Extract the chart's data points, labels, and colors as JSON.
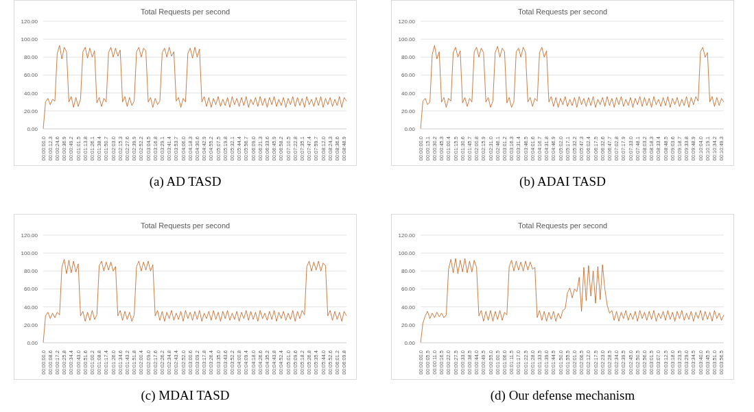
{
  "chart_data": [
    {
      "type": "line",
      "title": "Total Requests per second",
      "annotations": [
        "(a) AD TASD"
      ],
      "color": "#c55a11",
      "grid": "y",
      "marker": "none",
      "categories": [
        "00:00:00.0",
        null,
        null,
        "00:00:12.3",
        null,
        null,
        "00:00:24.6",
        null,
        null,
        "00:00:36.9",
        null,
        null,
        "00:00:49.2",
        null,
        null,
        "00:01:01.5",
        null,
        null,
        "00:01:13.8",
        null,
        null,
        "00:01:26.1",
        null,
        null,
        "00:01:38.4",
        null,
        null,
        "00:01:50.7",
        null,
        null,
        "00:02:03.0",
        null,
        null,
        "00:02:15.3",
        null,
        null,
        "00:02:27.6",
        null,
        null,
        "00:02:39.9",
        null,
        null,
        "00:02:52.2",
        null,
        null,
        "00:03:04.5",
        null,
        null,
        "00:03:16.8",
        null,
        null,
        "00:03:29.1",
        null,
        null,
        "00:03:41.4",
        null,
        null,
        "00:03:53.7",
        null,
        null,
        "00:04:06.0",
        null,
        null,
        "00:04:18.3",
        null,
        null,
        "00:04:30.6",
        null,
        null,
        "00:04:42.9",
        null,
        null,
        "00:04:55.2",
        null,
        null,
        "00:05:07.5",
        null,
        null,
        "00:05:19.8",
        null,
        null,
        "00:05:32.1",
        null,
        null,
        "00:05:44.4",
        null,
        null,
        "00:05:56.7",
        null,
        null,
        "00:06:09.0",
        null,
        null,
        "00:06:21.3",
        null,
        null,
        "00:06:33.6",
        null,
        null,
        "00:06:45.9",
        null,
        null,
        "00:06:58.2",
        null,
        null,
        "00:07:10.5",
        null,
        null,
        "00:07:22.8",
        null,
        null,
        "00:07:35.1",
        null,
        null,
        "00:07:47.4",
        null,
        null,
        "00:07:59.7",
        null,
        null,
        "00:08:12.0",
        null,
        null,
        "00:08:24.3",
        null,
        null,
        "00:08:36.6",
        null,
        null,
        "00:08:48.9",
        null
      ],
      "values": [
        0,
        30,
        34,
        27,
        33,
        31,
        84,
        93,
        78,
        91,
        86,
        30,
        36,
        24,
        35,
        25,
        33,
        86,
        91,
        79,
        90,
        80,
        87,
        29,
        35,
        25,
        34,
        30,
        85,
        91,
        80,
        90,
        81,
        88,
        30,
        36,
        25,
        35,
        26,
        31,
        86,
        91,
        80,
        90,
        87,
        30,
        35,
        24,
        34,
        27,
        31,
        85,
        90,
        80,
        91,
        81,
        86,
        31,
        35,
        24,
        34,
        30,
        84,
        90,
        79,
        91,
        80,
        89,
        30,
        36,
        25,
        35,
        24,
        34,
        27,
        36,
        25,
        33,
        26,
        35,
        24,
        36,
        27,
        34,
        25,
        35,
        26,
        36,
        24,
        33,
        27,
        35,
        25,
        36,
        26,
        34,
        24,
        35,
        27,
        36,
        25,
        33,
        26,
        35,
        24,
        34,
        27,
        36,
        25,
        35,
        26,
        34,
        24,
        36,
        27,
        33,
        25,
        35,
        26,
        36,
        24,
        34,
        27,
        35,
        25,
        33,
        26,
        36,
        24,
        35,
        31
      ],
      "ylim": [
        0,
        120
      ],
      "yticks": [
        {
          "value": 0,
          "label": "0.00"
        },
        {
          "value": 20,
          "label": "20.00"
        },
        {
          "value": 40,
          "label": "40.00"
        },
        {
          "value": 60,
          "label": "60.00"
        },
        {
          "value": 80,
          "label": "80.00"
        },
        {
          "value": 100,
          "label": "100.00"
        },
        {
          "value": 120,
          "label": "120.00"
        }
      ]
    },
    {
      "type": "line",
      "title": "Total Requests per second",
      "annotations": [
        "(b) ADAI TASD"
      ],
      "color": "#c55a11",
      "grid": "y",
      "marker": "none",
      "categories": [
        "00:00:00.0",
        null,
        null,
        "00:00:15.1",
        null,
        null,
        "00:00:30.2",
        null,
        null,
        "00:00:45.3",
        null,
        null,
        "00:01:00.4",
        null,
        null,
        "00:01:15.5",
        null,
        null,
        "00:01:30.6",
        null,
        null,
        "00:01:45.7",
        null,
        null,
        "00:02:00.8",
        null,
        null,
        "00:02:15.9",
        null,
        null,
        "00:02:31.0",
        null,
        null,
        "00:02:46.1",
        null,
        null,
        "00:03:01.2",
        null,
        null,
        "00:03:16.3",
        null,
        null,
        "00:03:31.4",
        null,
        null,
        "00:03:46.5",
        null,
        null,
        "00:04:01.6",
        null,
        null,
        "00:04:16.7",
        null,
        null,
        "00:04:31.8",
        null,
        null,
        "00:04:46.9",
        null,
        null,
        "00:05:02.0",
        null,
        null,
        "00:05:17.1",
        null,
        null,
        "00:05:32.2",
        null,
        null,
        "00:05:47.3",
        null,
        null,
        "00:06:02.4",
        null,
        null,
        "00:06:17.5",
        null,
        null,
        "00:06:32.6",
        null,
        null,
        "00:06:47.7",
        null,
        null,
        "00:07:02.8",
        null,
        null,
        "00:07:17.9",
        null,
        null,
        "00:07:33.0",
        null,
        null,
        "00:07:48.1",
        null,
        null,
        "00:08:03.2",
        null,
        null,
        "00:08:18.3",
        null,
        null,
        "00:08:33.4",
        null,
        null,
        "00:08:48.5",
        null,
        null,
        "00:09:03.6",
        null,
        null,
        "00:09:18.7",
        null,
        null,
        "00:09:33.8",
        null,
        null,
        "00:09:48.9",
        null,
        null,
        "00:10:04.0",
        null,
        null,
        "00:10:19.1",
        null,
        null,
        "00:10:34.2",
        null,
        null,
        "00:10:49.3",
        null
      ],
      "values": [
        0,
        31,
        34,
        27,
        30,
        83,
        93,
        78,
        86,
        30,
        35,
        24,
        34,
        31,
        85,
        91,
        80,
        87,
        29,
        35,
        25,
        34,
        30,
        86,
        91,
        80,
        90,
        85,
        30,
        35,
        24,
        31,
        85,
        92,
        80,
        90,
        86,
        29,
        35,
        24,
        30,
        86,
        90,
        80,
        91,
        85,
        30,
        35,
        25,
        34,
        31,
        85,
        91,
        80,
        87,
        30,
        36,
        25,
        35,
        24,
        34,
        27,
        36,
        25,
        33,
        26,
        35,
        24,
        36,
        27,
        34,
        25,
        35,
        26,
        36,
        24,
        33,
        27,
        35,
        25,
        36,
        26,
        34,
        24,
        35,
        27,
        36,
        25,
        33,
        26,
        35,
        24,
        34,
        27,
        36,
        25,
        35,
        26,
        34,
        24,
        36,
        27,
        33,
        25,
        35,
        26,
        36,
        24,
        34,
        27,
        35,
        25,
        33,
        26,
        36,
        24,
        35,
        27,
        36,
        31,
        86,
        91,
        80,
        85,
        30,
        36,
        25,
        35,
        26,
        34,
        30
      ],
      "ylim": [
        0,
        120
      ],
      "yticks": [
        {
          "value": 0,
          "label": "0.00"
        },
        {
          "value": 20,
          "label": "20.00"
        },
        {
          "value": 40,
          "label": "40.00"
        },
        {
          "value": 60,
          "label": "60.00"
        },
        {
          "value": 80,
          "label": "80.00"
        },
        {
          "value": 100,
          "label": "100.00"
        },
        {
          "value": 120,
          "label": "120.00"
        }
      ]
    },
    {
      "type": "line",
      "title": "Total Requests per second",
      "annotations": [
        "(c) MDAI TASD"
      ],
      "color": "#c55a11",
      "grid": "y",
      "marker": "none",
      "categories": [
        "00:00:00.0",
        null,
        null,
        "00:00:08.6",
        null,
        null,
        "00:00:17.2",
        null,
        null,
        "00:00:25.8",
        null,
        null,
        "00:00:34.4",
        null,
        null,
        "00:00:43.0",
        null,
        null,
        "00:00:51.6",
        null,
        null,
        "00:01:00.2",
        null,
        null,
        "00:01:08.8",
        null,
        null,
        "00:01:17.4",
        null,
        null,
        "00:01:26.0",
        null,
        null,
        "00:01:34.6",
        null,
        null,
        "00:01:43.2",
        null,
        null,
        "00:01:51.8",
        null,
        null,
        "00:02:00.4",
        null,
        null,
        "00:02:09.0",
        null,
        null,
        "00:02:17.6",
        null,
        null,
        "00:02:26.2",
        null,
        null,
        "00:02:34.8",
        null,
        null,
        "00:02:43.4",
        null,
        null,
        "00:02:52.0",
        null,
        null,
        "00:03:00.6",
        null,
        null,
        "00:03:09.2",
        null,
        null,
        "00:03:17.8",
        null,
        null,
        "00:03:26.4",
        null,
        null,
        "00:03:35.0",
        null,
        null,
        "00:03:43.6",
        null,
        null,
        "00:03:52.2",
        null,
        null,
        "00:04:00.8",
        null,
        null,
        "00:04:09.4",
        null,
        null,
        "00:04:18.0",
        null,
        null,
        "00:04:26.6",
        null,
        null,
        "00:04:35.2",
        null,
        null,
        "00:04:43.8",
        null,
        null,
        "00:04:52.4",
        null,
        null,
        "00:05:01.0",
        null,
        null,
        "00:05:09.6",
        null,
        null,
        "00:05:18.2",
        null,
        null,
        "00:05:26.8",
        null,
        null,
        "00:05:35.4",
        null,
        null,
        "00:05:44.0",
        null,
        null,
        "00:05:52.6",
        null,
        null,
        "00:06:01.2",
        null,
        null,
        "00:06:09.8",
        null
      ],
      "values": [
        0,
        30,
        34,
        27,
        33,
        28,
        34,
        31,
        84,
        93,
        77,
        92,
        78,
        91,
        79,
        88,
        30,
        35,
        24,
        34,
        25,
        36,
        26,
        31,
        86,
        91,
        80,
        90,
        81,
        90,
        80,
        85,
        30,
        36,
        25,
        35,
        26,
        34,
        24,
        31,
        85,
        91,
        80,
        90,
        81,
        91,
        80,
        87,
        30,
        36,
        25,
        35,
        24,
        34,
        27,
        36,
        25,
        33,
        26,
        35,
        24,
        36,
        27,
        34,
        25,
        35,
        26,
        36,
        24,
        33,
        27,
        35,
        25,
        36,
        26,
        34,
        24,
        35,
        27,
        36,
        25,
        33,
        26,
        35,
        24,
        34,
        27,
        36,
        25,
        35,
        26,
        34,
        24,
        36,
        27,
        33,
        25,
        35,
        26,
        36,
        24,
        34,
        27,
        35,
        25,
        33,
        26,
        36,
        24,
        35,
        27,
        36,
        31,
        85,
        91,
        80,
        90,
        81,
        91,
        80,
        89,
        86,
        30,
        36,
        25,
        35,
        26,
        34,
        24,
        35,
        30
      ],
      "ylim": [
        0,
        120
      ],
      "yticks": [
        {
          "value": 0,
          "label": "0.00"
        },
        {
          "value": 20,
          "label": "20.00"
        },
        {
          "value": 40,
          "label": "40.00"
        },
        {
          "value": 60,
          "label": "60.00"
        },
        {
          "value": 80,
          "label": "80.00"
        },
        {
          "value": 100,
          "label": "100.00"
        },
        {
          "value": 120,
          "label": "120.00"
        }
      ]
    },
    {
      "type": "line",
      "title": "Total Requests per second",
      "annotations": [
        "(d) Our defense mechanism"
      ],
      "color": "#c55a11",
      "grid": "y",
      "marker": "none",
      "categories": [
        "00:00:00.0",
        null,
        null,
        "00:00:05.5",
        null,
        null,
        "00:00:11.0",
        null,
        null,
        "00:00:16.5",
        null,
        null,
        "00:00:22.0",
        null,
        null,
        "00:00:27.5",
        null,
        null,
        "00:00:33.0",
        null,
        null,
        "00:00:38.5",
        null,
        null,
        "00:00:44.0",
        null,
        null,
        "00:00:49.5",
        null,
        null,
        "00:00:55.0",
        null,
        null,
        "00:01:00.5",
        null,
        null,
        "00:01:06.0",
        null,
        null,
        "00:01:11.5",
        null,
        null,
        "00:01:17.0",
        null,
        null,
        "00:01:22.5",
        null,
        null,
        "00:01:28.0",
        null,
        null,
        "00:01:33.5",
        null,
        null,
        "00:01:39.0",
        null,
        null,
        "00:01:44.5",
        null,
        null,
        "00:01:50.0",
        null,
        null,
        "00:01:55.5",
        null,
        null,
        "00:02:01.0",
        null,
        null,
        "00:02:06.5",
        null,
        null,
        "00:02:12.0",
        null,
        null,
        "00:02:17.5",
        null,
        null,
        "00:02:23.0",
        null,
        null,
        "00:02:28.5",
        null,
        null,
        "00:02:34.0",
        null,
        null,
        "00:02:39.5",
        null,
        null,
        "00:02:45.0",
        null,
        null,
        "00:02:50.5",
        null,
        null,
        "00:02:56.0",
        null,
        null,
        "00:03:01.5",
        null,
        null,
        "00:03:07.0",
        null,
        null,
        "00:03:12.5",
        null,
        null,
        "00:03:18.0",
        null,
        null,
        "00:03:23.5",
        null,
        null,
        "00:03:29.0",
        null,
        null,
        "00:03:34.5",
        null,
        null,
        "00:03:40.0",
        null,
        null,
        "00:03:45.5",
        null,
        null,
        "00:03:51.0",
        null,
        null,
        "00:03:56.5",
        null
      ],
      "values": [
        0,
        22,
        30,
        35,
        27,
        33,
        28,
        34,
        29,
        33,
        28,
        31,
        82,
        93,
        78,
        94,
        77,
        92,
        79,
        94,
        78,
        91,
        79,
        92,
        84,
        30,
        36,
        24,
        35,
        25,
        36,
        24,
        35,
        26,
        36,
        25,
        34,
        31,
        85,
        92,
        80,
        91,
        81,
        90,
        80,
        91,
        81,
        90,
        82,
        84,
        28,
        36,
        25,
        35,
        24,
        34,
        26,
        35,
        24,
        33,
        27,
        36,
        38,
        56,
        61,
        50,
        60,
        57,
        73,
        35,
        84,
        47,
        86,
        52,
        80,
        44,
        85,
        48,
        87,
        60,
        42,
        33,
        36,
        25,
        35,
        24,
        34,
        27,
        36,
        25,
        33,
        26,
        35,
        24,
        36,
        27,
        34,
        25,
        35,
        26,
        36,
        24,
        33,
        27,
        35,
        25,
        36,
        26,
        34,
        24,
        35,
        27,
        36,
        25,
        33,
        26,
        35,
        24,
        34,
        27,
        36,
        25,
        35,
        26,
        34,
        24,
        36,
        27,
        33,
        25,
        31
      ],
      "ylim": [
        0,
        120
      ],
      "yticks": [
        {
          "value": 0,
          "label": "0.00"
        },
        {
          "value": 20,
          "label": "20.00"
        },
        {
          "value": 40,
          "label": "40.00"
        },
        {
          "value": 60,
          "label": "60.00"
        },
        {
          "value": 80,
          "label": "80.00"
        },
        {
          "value": 100,
          "label": "100.00"
        },
        {
          "value": 120,
          "label": "120.00"
        }
      ]
    }
  ]
}
